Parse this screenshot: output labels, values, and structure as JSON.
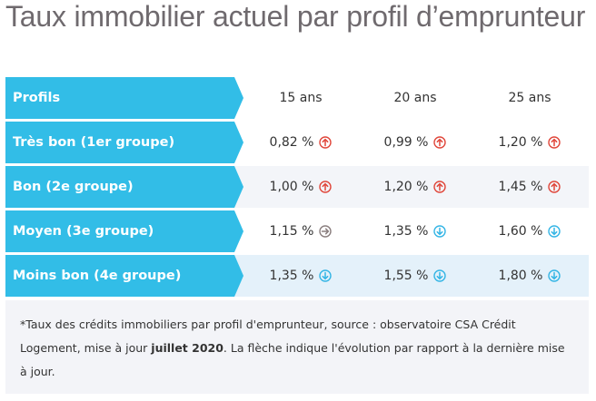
{
  "title": "Taux immobilier actuel par profil d’emprunteur",
  "header": {
    "label": "Profils",
    "columns": [
      "15 ans",
      "20 ans",
      "25 ans"
    ]
  },
  "rows": [
    {
      "label": "Très bon (1er groupe)",
      "cells": [
        {
          "value": "0,82 %",
          "trend": "up"
        },
        {
          "value": "0,99 %",
          "trend": "up"
        },
        {
          "value": "1,20 %",
          "trend": "up"
        }
      ]
    },
    {
      "label": "Bon (2e groupe)",
      "cells": [
        {
          "value": "1,00 %",
          "trend": "up"
        },
        {
          "value": "1,20 %",
          "trend": "up"
        },
        {
          "value": "1,45 %",
          "trend": "up"
        }
      ]
    },
    {
      "label": "Moyen (3e groupe)",
      "cells": [
        {
          "value": "1,15 %",
          "trend": "stable"
        },
        {
          "value": "1,35 %",
          "trend": "down"
        },
        {
          "value": "1,60 %",
          "trend": "down"
        }
      ]
    },
    {
      "label": "Moins bon (4e groupe)",
      "cells": [
        {
          "value": "1,35 %",
          "trend": "down"
        },
        {
          "value": "1,55 %",
          "trend": "down"
        },
        {
          "value": "1,80 %",
          "trend": "down"
        }
      ]
    }
  ],
  "note": {
    "before": "*Taux des crédits immobiliers par profil d'emprunteur, source : observatoire CSA Crédit Logement, mise à jour ",
    "bold": "juillet 2020",
    "after": ". La flèche indique l'évolution par rapport à la dernière mise à jour."
  },
  "colors": {
    "label_bg": "#32bde7",
    "up": "#e0463a",
    "down": "#34b5e5",
    "stable": "#8a7e7e"
  },
  "icons": {
    "up": "arrow-up-circle-icon",
    "down": "arrow-down-circle-icon",
    "stable": "arrow-right-circle-icon"
  }
}
